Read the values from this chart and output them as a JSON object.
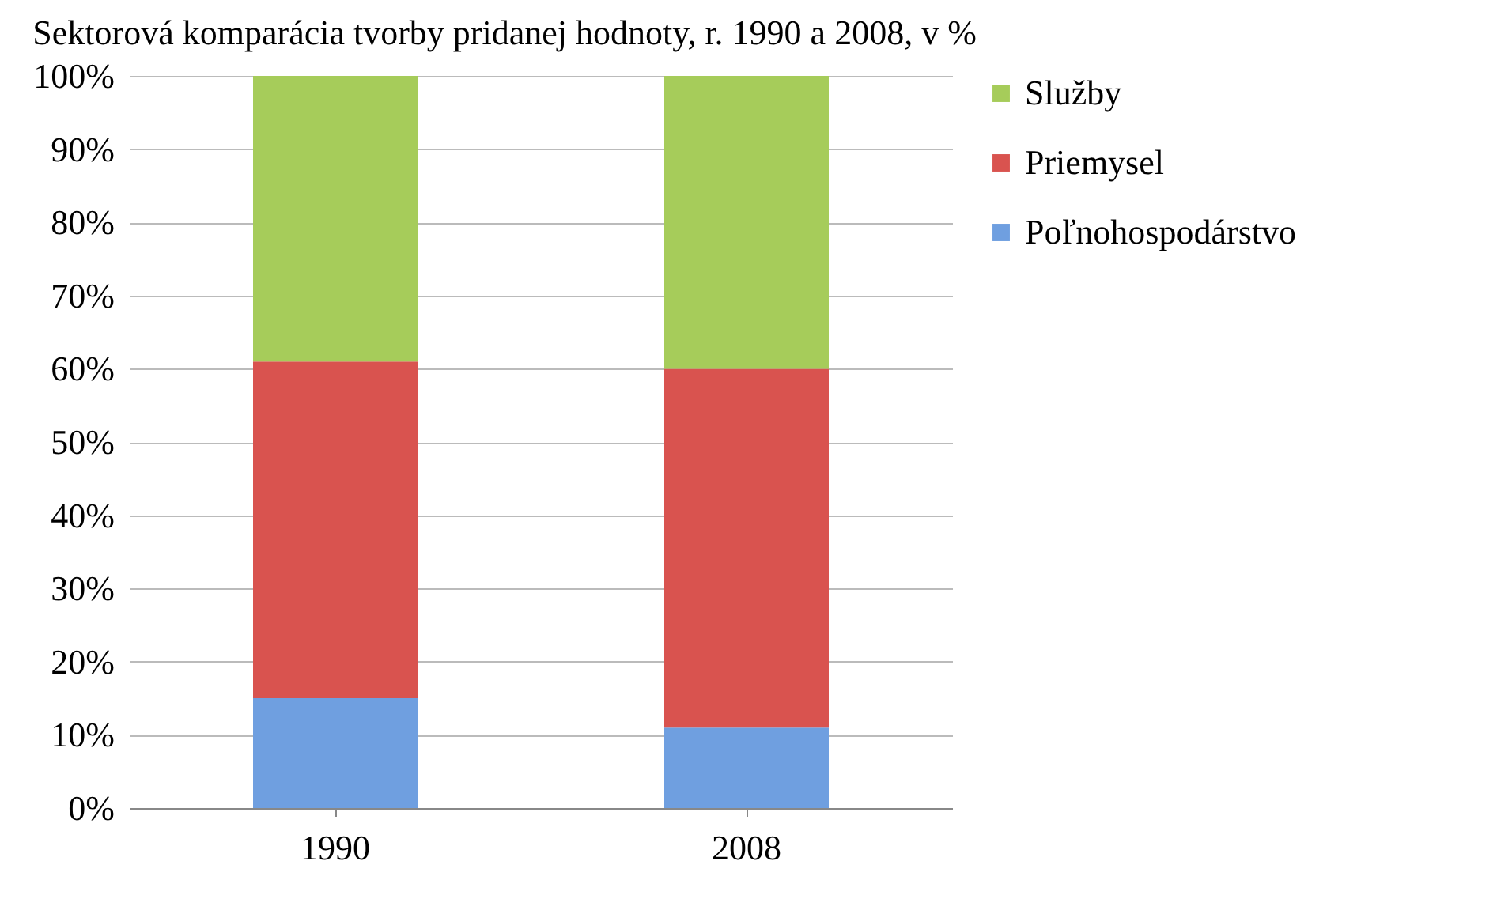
{
  "chart_data": {
    "type": "bar",
    "title": "Sektorová komparácia tvorby pridanej hodnoty, r. 1990 a 2008, v %",
    "categories": [
      "1990",
      "2008"
    ],
    "stacked": true,
    "ylim": [
      0,
      100
    ],
    "yticks": [
      {
        "value": 0,
        "label": "0%"
      },
      {
        "value": 10,
        "label": "10%"
      },
      {
        "value": 20,
        "label": "20%"
      },
      {
        "value": 30,
        "label": "30%"
      },
      {
        "value": 40,
        "label": "40%"
      },
      {
        "value": 50,
        "label": "50%"
      },
      {
        "value": 60,
        "label": "60%"
      },
      {
        "value": 70,
        "label": "70%"
      },
      {
        "value": 80,
        "label": "80%"
      },
      {
        "value": 90,
        "label": "90%"
      },
      {
        "value": 100,
        "label": "100%"
      }
    ],
    "grid": "y",
    "legend": "right",
    "series": [
      {
        "name": "Poľnohospodárstvo",
        "color": "#6f9fe0",
        "values": [
          15,
          11
        ]
      },
      {
        "name": "Priemysel",
        "color": "#d9534f",
        "values": [
          46,
          49
        ]
      },
      {
        "name": "Služby",
        "color": "#a6cc5a",
        "values": [
          39,
          40
        ]
      }
    ]
  }
}
